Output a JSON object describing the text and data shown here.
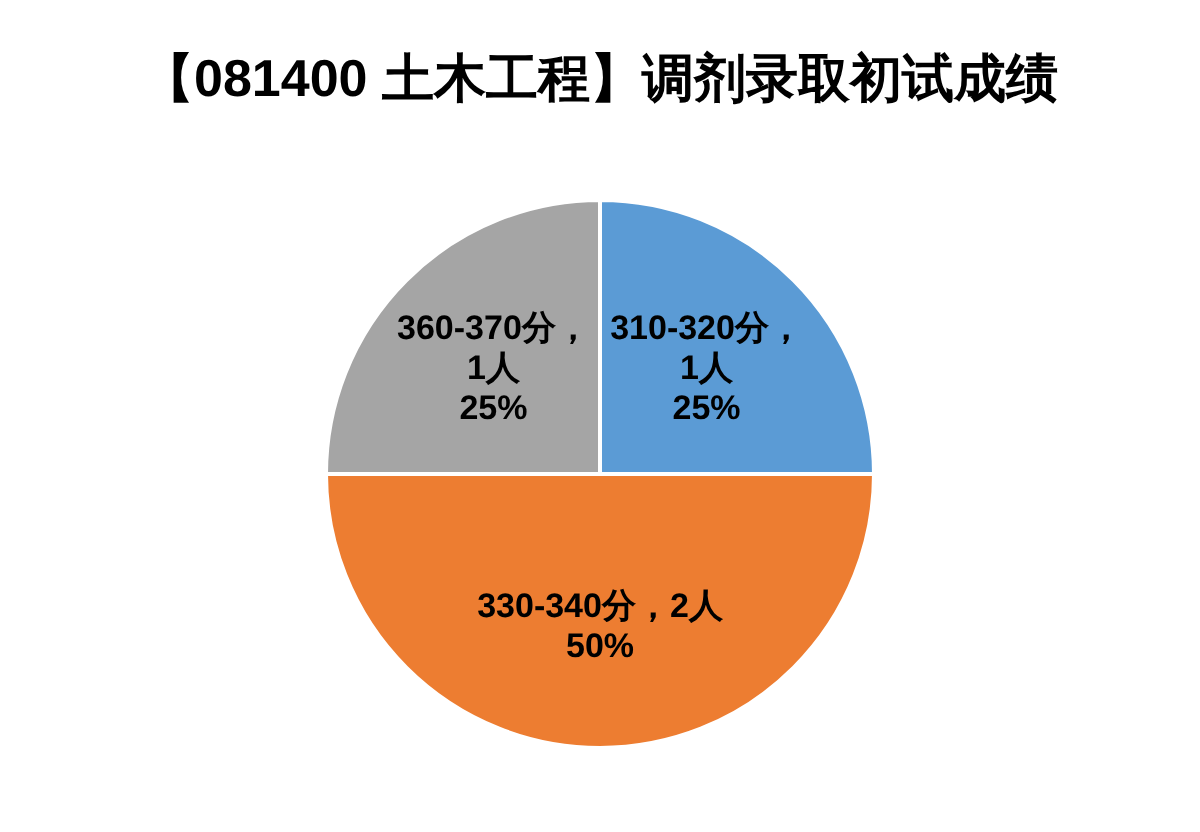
{
  "chart_data": {
    "type": "pie",
    "title": "【081400 土木工程】调剂录取初试成绩",
    "categories": [
      "310-320分",
      "330-340分",
      "360-370分"
    ],
    "values": [
      25,
      50,
      25
    ],
    "value_labels": [
      "，1人 25%",
      "，2人 50%",
      "，1人 25%"
    ],
    "colors": [
      "#5b9bd5",
      "#ed7d31",
      "#a5a5a5"
    ],
    "legend": false
  }
}
